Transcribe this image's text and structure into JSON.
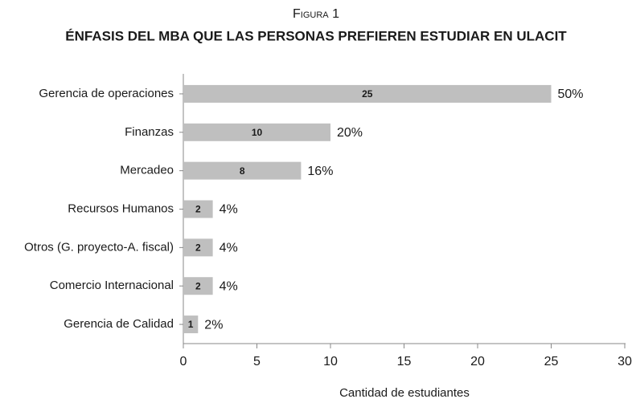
{
  "chart_data": {
    "type": "bar",
    "orientation": "horizontal",
    "subtitle": "Figura 1",
    "title": "ÉNFASIS DEL MBA QUE LAS PERSONAS PREFIEREN ESTUDIAR EN ULACIT",
    "x_label": "Cantidad de estudiantes",
    "categories": [
      "Gerencia de operaciones",
      "Finanzas",
      "Mercadeo",
      "Recursos Humanos",
      "Otros (G. proyecto-A. fiscal)",
      "Comercio Internacional",
      "Gerencia de Calidad"
    ],
    "values": [
      25,
      10,
      8,
      2,
      2,
      2,
      1
    ],
    "percent_labels": [
      "50%",
      "20%",
      "16%",
      "4%",
      "4%",
      "4%",
      "2%"
    ],
    "color": "#bfbfbf",
    "xlim": [
      0,
      30
    ],
    "xticks": [
      0,
      5,
      10,
      15,
      20,
      25,
      30
    ],
    "grid": false
  }
}
